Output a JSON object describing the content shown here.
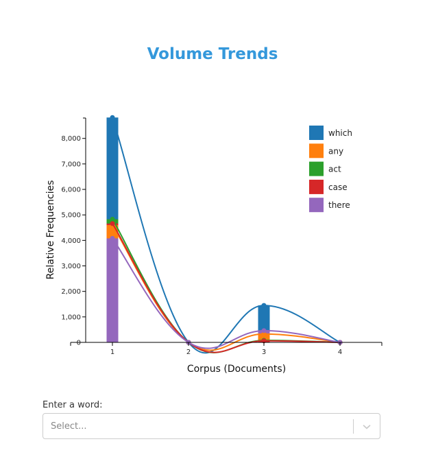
{
  "page": {
    "title": "Volume Trends"
  },
  "chart_data": {
    "type": "line",
    "xlabel": "Corpus (Documents)",
    "ylabel": "Relative Frequencies",
    "x": [
      1,
      2,
      3,
      4
    ],
    "x_ticks": [
      "1",
      "2",
      "3",
      "4"
    ],
    "y_ticks": [
      "0",
      "1,000",
      "2,000",
      "3,000",
      "4,000",
      "5,000",
      "6,000",
      "7,000",
      "8,000"
    ],
    "ylim": [
      0,
      8800
    ],
    "legend_position": "top-right",
    "series": [
      {
        "name": "which",
        "color": "#1f77b4",
        "values": [
          8820,
          0,
          1450,
          0
        ]
      },
      {
        "name": "any",
        "color": "#ff7f0e",
        "values": [
          4600,
          0,
          330,
          0
        ]
      },
      {
        "name": "act",
        "color": "#2ca02c",
        "values": [
          4830,
          0,
          80,
          0
        ]
      },
      {
        "name": "case",
        "color": "#d62728",
        "values": [
          4660,
          0,
          60,
          0
        ]
      },
      {
        "name": "there",
        "color": "#9467bd",
        "values": [
          4080,
          0,
          460,
          0
        ]
      }
    ]
  },
  "control": {
    "label": "Enter a word:",
    "placeholder": "Select...",
    "chevron_icon": "chevron-down-icon"
  }
}
